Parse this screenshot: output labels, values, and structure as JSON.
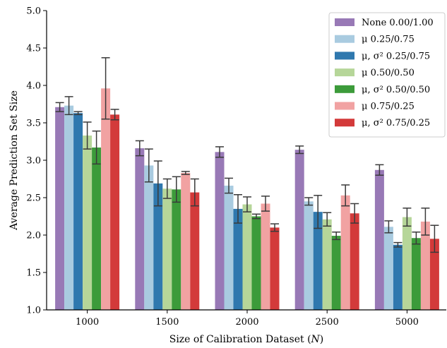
{
  "chart_data": {
    "type": "bar",
    "xlabel": "Size of Calibration Dataset (N)",
    "ylabel": "Average Prediction Set Size",
    "ylim": [
      1.0,
      5.0
    ],
    "yticks": [
      "1.0",
      "1.5",
      "2.0",
      "2.5",
      "3.0",
      "3.5",
      "4.0",
      "4.5",
      "5.0"
    ],
    "categories": [
      "1000",
      "1500",
      "2000",
      "2500",
      "5000"
    ],
    "legend_position": "top-right",
    "grid": false,
    "series": [
      {
        "name": "None 0.00/1.00",
        "color": "#9879b6",
        "values": [
          3.71,
          3.16,
          3.11,
          3.14,
          2.87
        ],
        "errors": [
          0.06,
          0.1,
          0.07,
          0.05,
          0.07
        ]
      },
      {
        "name": "μ 0.25/0.75",
        "color": "#a9cbe0",
        "values": [
          3.73,
          2.93,
          2.66,
          2.45,
          2.11
        ],
        "errors": [
          0.12,
          0.22,
          0.1,
          0.05,
          0.08
        ]
      },
      {
        "name": "μ, σ² 0.25/0.75",
        "color": "#2f78ae",
        "values": [
          3.63,
          2.69,
          2.35,
          2.31,
          1.87
        ],
        "errors": [
          0.02,
          0.3,
          0.19,
          0.22,
          0.03
        ]
      },
      {
        "name": "μ 0.50/0.50",
        "color": "#b6d699",
        "values": [
          3.33,
          2.62,
          2.41,
          2.21,
          2.24
        ],
        "errors": [
          0.18,
          0.13,
          0.1,
          0.09,
          0.12
        ]
      },
      {
        "name": "μ, σ² 0.50/0.50",
        "color": "#3c9b3a",
        "values": [
          3.17,
          2.61,
          2.25,
          1.99,
          1.96
        ],
        "errors": [
          0.22,
          0.17,
          0.03,
          0.05,
          0.08
        ]
      },
      {
        "name": "μ 0.75/0.25",
        "color": "#f1a2a2",
        "values": [
          3.96,
          2.83,
          2.42,
          2.53,
          2.18
        ],
        "errors": [
          0.41,
          0.02,
          0.1,
          0.14,
          0.18
        ]
      },
      {
        "name": "μ, σ² 0.75/0.25",
        "color": "#d33a3a",
        "values": [
          3.61,
          2.57,
          2.1,
          2.29,
          1.95
        ],
        "errors": [
          0.07,
          0.18,
          0.05,
          0.13,
          0.18
        ]
      }
    ]
  }
}
